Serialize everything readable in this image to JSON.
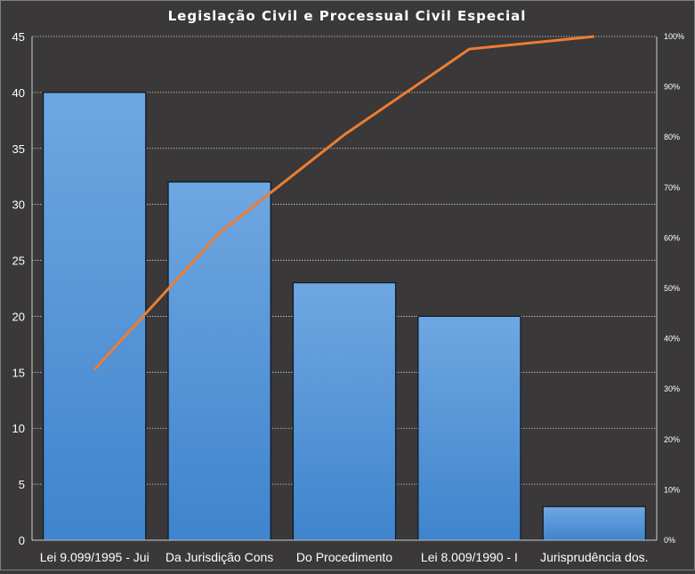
{
  "chart_data": {
    "type": "bar",
    "title": "Legislação Civil e Processual Civil Especial",
    "categories": [
      "Lei 9.099/1995 - Jui",
      "Da Jurisdição Cons",
      "Do Procedimento",
      "Lei 8.009/1990 - I",
      "Jurisprudência dos."
    ],
    "series": [
      {
        "type": "bar",
        "axis": "left",
        "values": [
          40,
          32,
          23,
          20,
          3
        ]
      },
      {
        "type": "line",
        "axis": "right",
        "values": [
          33.9,
          61.0,
          80.5,
          97.5,
          100.0
        ]
      }
    ],
    "ylim": [
      0,
      45
    ],
    "yticks": [
      "0",
      "5",
      "10",
      "15",
      "20",
      "25",
      "30",
      "35",
      "40",
      "45"
    ],
    "y2lim": [
      0,
      100
    ],
    "y2ticks": [
      "0%",
      "10%",
      "20%",
      "30%",
      "40%",
      "50%",
      "60%",
      "70%",
      "80%",
      "90%",
      "100%"
    ],
    "grid": true,
    "legend": "none",
    "colors": {
      "background": "#3a3838",
      "bar_top": "#6fa7e1",
      "bar_bottom": "#3f84cd",
      "line": "#ed7d31",
      "gridline": "#cfcfcf",
      "text": "#ffffff"
    }
  }
}
